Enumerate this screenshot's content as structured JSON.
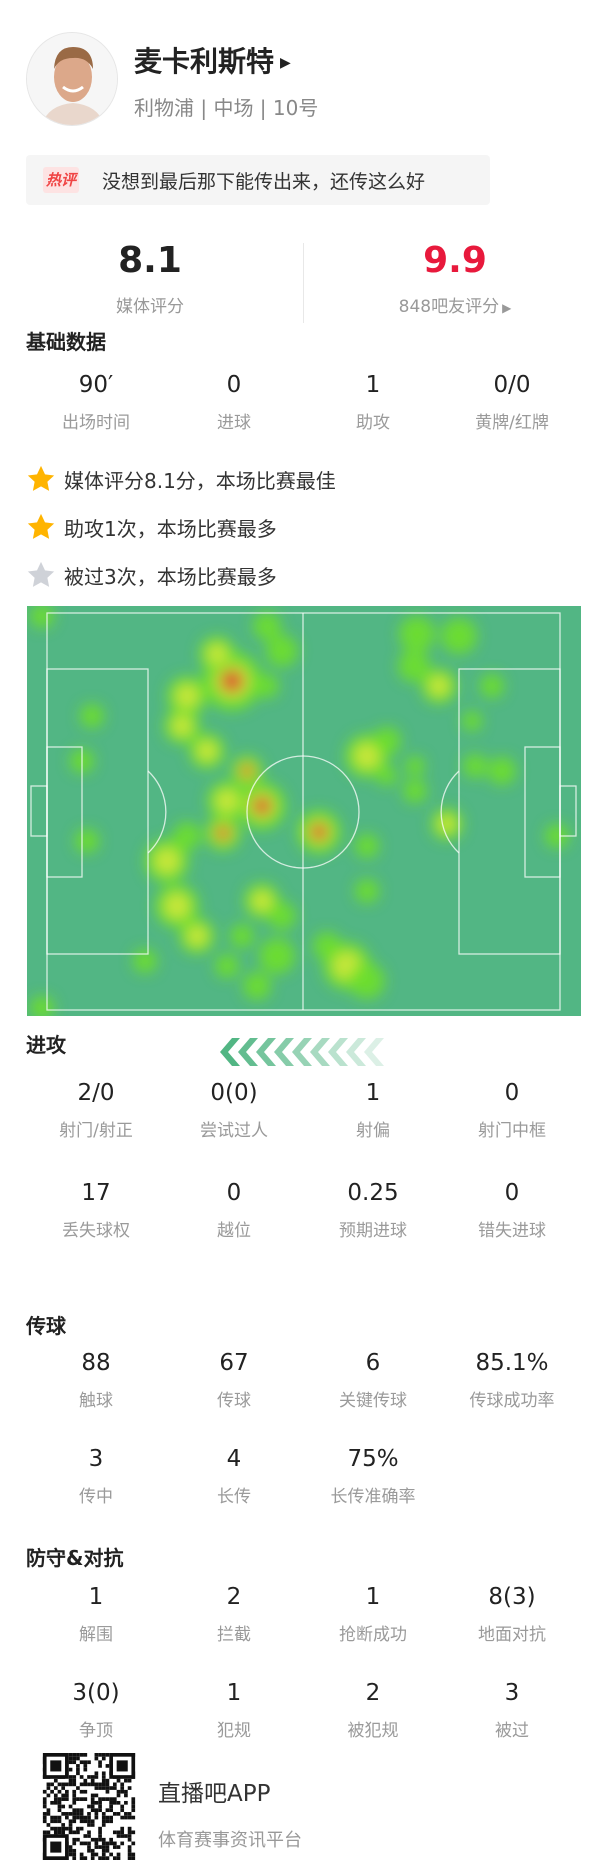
{
  "player": {
    "name": "麦卡利斯特",
    "team": "利物浦",
    "position": "中场",
    "number": "10号",
    "sep": " | "
  },
  "comment": {
    "tag": "热评",
    "text": "没想到最后那下能传出来，还传这么好"
  },
  "ratings": {
    "media_value": "8.1",
    "media_label": "媒体评分",
    "fan_value": "9.9",
    "fan_label": "848吧友评分",
    "fan_color": "#e8193c"
  },
  "basic": {
    "title": "基础数据",
    "items": [
      {
        "value": "90′",
        "label": "出场时间"
      },
      {
        "value": "0",
        "label": "进球"
      },
      {
        "value": "1",
        "label": "助攻"
      },
      {
        "value": "0/0",
        "label": "黄牌/红牌"
      }
    ]
  },
  "highlights": [
    {
      "icon": "star-gold-icon",
      "text": "媒体评分8.1分，本场比赛最佳"
    },
    {
      "icon": "star-gold-icon",
      "text": "助攻1次，本场比赛最多"
    },
    {
      "icon": "star-silver-icon",
      "text": "被过3次，本场比赛最多"
    }
  ],
  "attack": {
    "title": "进攻",
    "rows": [
      [
        {
          "value": "2/0",
          "label": "射门/射正"
        },
        {
          "value": "0(0)",
          "label": "尝试过人"
        },
        {
          "value": "1",
          "label": "射偏"
        },
        {
          "value": "0",
          "label": "射门中框"
        }
      ],
      [
        {
          "value": "17",
          "label": "丢失球权"
        },
        {
          "value": "0",
          "label": "越位"
        },
        {
          "value": "0.25",
          "label": "预期进球"
        },
        {
          "value": "0",
          "label": "错失进球"
        }
      ]
    ]
  },
  "passing": {
    "title": "传球",
    "rows": [
      [
        {
          "value": "88",
          "label": "触球"
        },
        {
          "value": "67",
          "label": "传球"
        },
        {
          "value": "6",
          "label": "关键传球"
        },
        {
          "value": "85.1%",
          "label": "传球成功率"
        }
      ],
      [
        {
          "value": "3",
          "label": "传中"
        },
        {
          "value": "4",
          "label": "长传"
        },
        {
          "value": "75%",
          "label": "长传准确率"
        }
      ]
    ]
  },
  "defense": {
    "title": "防守&对抗",
    "rows": [
      [
        {
          "value": "1",
          "label": "解围"
        },
        {
          "value": "2",
          "label": "拦截"
        },
        {
          "value": "1",
          "label": "抢断成功"
        },
        {
          "value": "8(3)",
          "label": "地面对抗"
        }
      ],
      [
        {
          "value": "3(0)",
          "label": "争顶"
        },
        {
          "value": "1",
          "label": "犯规"
        },
        {
          "value": "2",
          "label": "被犯规"
        },
        {
          "value": "3",
          "label": "被过"
        }
      ]
    ]
  },
  "footer": {
    "app": "直播吧APP",
    "slogan": "体育赛事资讯平台"
  },
  "colors": {
    "pitch": "#52b684",
    "accent": "#e8193c",
    "star_gold": "#ffb400",
    "star_silver": "#cfd2d8"
  }
}
